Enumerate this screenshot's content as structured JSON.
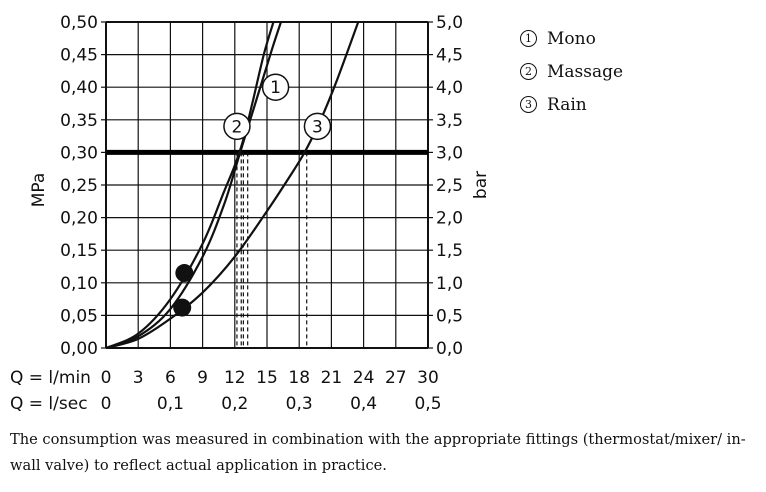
{
  "chart_data": {
    "type": "line",
    "ylabel_left": "MPa",
    "ylabel_right": "bar",
    "xlabel_flow": "Q = l/min",
    "xlabel_sec": "Q = l/sec",
    "x_ticks": [
      "0",
      "3",
      "6",
      "9",
      "12",
      "15",
      "18",
      "21",
      "24",
      "27",
      "30"
    ],
    "x_sec_ticks": [
      "0",
      "0,1",
      "0,2",
      "0,3",
      "0,4",
      "0,5"
    ],
    "y_ticks_left": [
      "0,00",
      "0,05",
      "0,10",
      "0,15",
      "0,20",
      "0,25",
      "0,30",
      "0,35",
      "0,40",
      "0,45",
      "0,50"
    ],
    "y_ticks_right": [
      "0,0",
      "0,5",
      "1,0",
      "1,5",
      "2,0",
      "2,5",
      "3,0",
      "3,5",
      "4,0",
      "4,5",
      "5,0"
    ],
    "xlim": [
      0,
      30
    ],
    "ylim": [
      0,
      0.5
    ],
    "grid": true,
    "reference_line_mpa": 0.3,
    "series": [
      {
        "label": "1",
        "x": [
          0,
          3,
          6,
          9,
          11,
          12.5,
          14,
          15.5,
          16.3
        ],
        "y": [
          0,
          0.018,
          0.06,
          0.14,
          0.22,
          0.3,
          0.38,
          0.46,
          0.5
        ],
        "marker": {
          "label_x": 15.8,
          "label_y": 0.4
        },
        "dashed_at_x": 13.2
      },
      {
        "label": "2",
        "x": [
          0,
          3,
          6,
          9,
          11,
          12,
          12.8,
          13.7,
          14.7,
          15.6
        ],
        "y": [
          0,
          0.022,
          0.075,
          0.16,
          0.24,
          0.28,
          0.32,
          0.38,
          0.45,
          0.5
        ],
        "marker": {
          "label_x": 12.2,
          "label_y": 0.34
        },
        "dashed_at_x": 12.8
      },
      {
        "label": "3",
        "x": [
          0,
          3,
          6,
          9,
          12,
          15,
          17,
          18.5,
          20,
          21.5,
          23.5
        ],
        "y": [
          0,
          0.014,
          0.045,
          0.085,
          0.14,
          0.21,
          0.26,
          0.3,
          0.35,
          0.41,
          0.5
        ],
        "marker": {
          "label_x": 19.7,
          "label_y": 0.34
        },
        "dashed_at_x": 18.7
      }
    ],
    "points": [
      {
        "x": 7.3,
        "y": 0.115
      },
      {
        "x": 7.1,
        "y": 0.062
      }
    ],
    "dashed_pair_x": [
      12.2,
      12.6
    ]
  },
  "legend": [
    {
      "num": "1",
      "label": "Mono"
    },
    {
      "num": "2",
      "label": "Massage"
    },
    {
      "num": "3",
      "label": "Rain"
    }
  ],
  "footnote": "The consumption was measured in combination with the appropriate fittings (thermostat/mixer/ in-wall valve) to reflect actual application in practice."
}
